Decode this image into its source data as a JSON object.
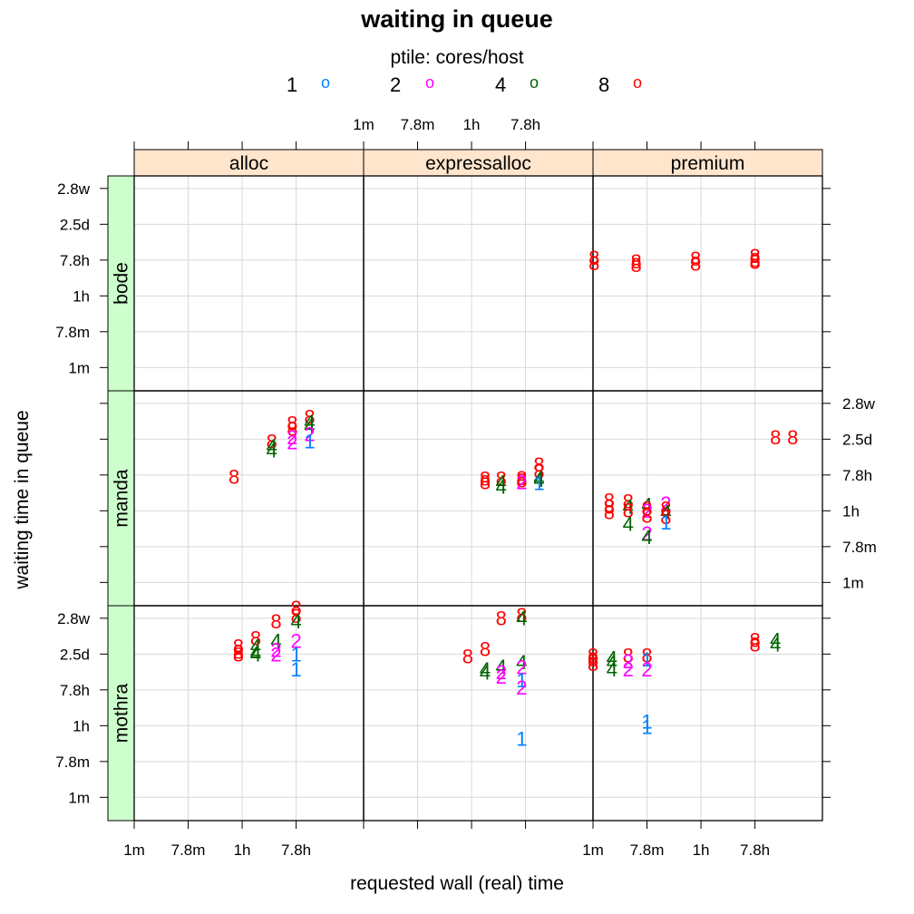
{
  "chart_data": {
    "type": "scatter",
    "title": "waiting in queue",
    "xlabel": "requested wall (real) time",
    "ylabel": "waiting time in queue",
    "legend": {
      "title": "ptile: cores/host",
      "placement": "top",
      "entries": [
        {
          "label": "1",
          "color": "#0080ff"
        },
        {
          "label": "2",
          "color": "#ff00ff"
        },
        {
          "label": "4",
          "color": "#006400"
        },
        {
          "label": "8",
          "color": "#ff0000"
        }
      ],
      "symbol": "o"
    },
    "x_ticks": [
      "1m",
      "7.8m",
      "1h",
      "7.8h"
    ],
    "y_ticks": [
      "1m",
      "7.8m",
      "1h",
      "7.8h",
      "2.5d",
      "2.8w"
    ],
    "x_unit_note": "log8 of seconds",
    "xlim": [
      1.0,
      5.25
    ],
    "ylim": [
      0.35,
      6.35
    ],
    "grid": true,
    "columns": [
      "alloc",
      "expressalloc",
      "premium"
    ],
    "rows": [
      "bode",
      "manda",
      "mothra"
    ],
    "panels": [
      {
        "column": "alloc",
        "row": "bode",
        "points": []
      },
      {
        "column": "alloc",
        "row": "manda",
        "points": [
          {
            "s": "8",
            "x": 3.55,
            "y": 4.92
          },
          {
            "s": "4",
            "x": 3.55,
            "y": 4.78
          },
          {
            "s": "4",
            "x": 3.55,
            "y": 4.67
          },
          {
            "s": "8",
            "x": 3.93,
            "y": 5.42
          },
          {
            "s": "8",
            "x": 3.93,
            "y": 5.27
          },
          {
            "s": "2",
            "x": 3.93,
            "y": 5.03
          },
          {
            "s": "2",
            "x": 3.93,
            "y": 4.9
          },
          {
            "s": "8",
            "x": 4.25,
            "y": 5.6
          },
          {
            "s": "4",
            "x": 4.25,
            "y": 5.47
          },
          {
            "s": "4",
            "x": 4.25,
            "y": 5.35
          },
          {
            "s": "2",
            "x": 4.25,
            "y": 5.12
          },
          {
            "s": "1",
            "x": 4.25,
            "y": 4.92
          },
          {
            "s": "8",
            "x": 2.85,
            "y": 3.93
          }
        ]
      },
      {
        "column": "alloc",
        "row": "mothra",
        "points": [
          {
            "s": "8",
            "x": 4.0,
            "y": 6.28
          },
          {
            "s": "8",
            "x": 4.0,
            "y": 6.05
          },
          {
            "s": "4",
            "x": 4.0,
            "y": 5.9
          },
          {
            "s": "2",
            "x": 4.0,
            "y": 5.35
          },
          {
            "s": "1",
            "x": 4.0,
            "y": 4.97
          },
          {
            "s": "1",
            "x": 4.0,
            "y": 4.55
          },
          {
            "s": "8",
            "x": 3.63,
            "y": 5.9
          },
          {
            "s": "4",
            "x": 3.63,
            "y": 5.35
          },
          {
            "s": "2",
            "x": 3.63,
            "y": 5.1
          },
          {
            "s": "2",
            "x": 3.63,
            "y": 4.97
          },
          {
            "s": "8",
            "x": 3.25,
            "y": 5.42
          },
          {
            "s": "4",
            "x": 3.25,
            "y": 5.2
          },
          {
            "s": "4",
            "x": 3.25,
            "y": 5.03
          },
          {
            "s": "4",
            "x": 3.25,
            "y": 4.97
          },
          {
            "s": "4",
            "x": 3.25,
            "y": 4.98
          },
          {
            "s": "8",
            "x": 2.93,
            "y": 5.2
          },
          {
            "s": "8",
            "x": 2.93,
            "y": 5.05
          },
          {
            "s": "8",
            "x": 2.93,
            "y": 4.97
          }
        ]
      },
      {
        "column": "expressalloc",
        "row": "bode",
        "points": []
      },
      {
        "column": "expressalloc",
        "row": "manda",
        "points": [
          {
            "s": "8",
            "x": 4.25,
            "y": 4.27
          },
          {
            "s": "8",
            "x": 4.25,
            "y": 4.08
          },
          {
            "s": "4",
            "x": 4.25,
            "y": 3.9
          },
          {
            "s": "4",
            "x": 4.25,
            "y": 3.85
          },
          {
            "s": "1",
            "x": 4.25,
            "y": 3.75
          },
          {
            "s": "8",
            "x": 3.93,
            "y": 3.9
          },
          {
            "s": "8",
            "x": 3.93,
            "y": 3.83
          },
          {
            "s": "2",
            "x": 3.93,
            "y": 3.78
          },
          {
            "s": "8",
            "x": 3.55,
            "y": 3.88
          },
          {
            "s": "4",
            "x": 3.55,
            "y": 3.78
          },
          {
            "s": "4",
            "x": 3.55,
            "y": 3.65
          },
          {
            "s": "8",
            "x": 3.25,
            "y": 3.88
          },
          {
            "s": "8",
            "x": 3.25,
            "y": 3.78
          }
        ]
      },
      {
        "column": "expressalloc",
        "row": "mothra",
        "points": [
          {
            "s": "8",
            "x": 3.93,
            "y": 6.07
          },
          {
            "s": "4",
            "x": 3.93,
            "y": 5.98
          },
          {
            "s": "8",
            "x": 3.55,
            "y": 5.98
          },
          {
            "s": "8",
            "x": 3.25,
            "y": 5.12
          },
          {
            "s": "8",
            "x": 2.93,
            "y": 4.92
          },
          {
            "s": "4",
            "x": 3.25,
            "y": 4.55
          },
          {
            "s": "4",
            "x": 3.25,
            "y": 4.47
          },
          {
            "s": "4",
            "x": 3.55,
            "y": 4.63
          },
          {
            "s": "2",
            "x": 3.55,
            "y": 4.48
          },
          {
            "s": "2",
            "x": 3.55,
            "y": 4.35
          },
          {
            "s": "4",
            "x": 3.93,
            "y": 4.75
          },
          {
            "s": "2",
            "x": 3.93,
            "y": 4.62
          },
          {
            "s": "1",
            "x": 3.93,
            "y": 4.25
          },
          {
            "s": "2",
            "x": 3.93,
            "y": 4.05
          },
          {
            "s": "1",
            "x": 3.93,
            "y": 2.62
          }
        ]
      },
      {
        "column": "premium",
        "row": "bode",
        "points": [
          {
            "s": "8",
            "x": 1.02,
            "y": 4.05
          },
          {
            "s": "8",
            "x": 1.02,
            "y": 3.9
          },
          {
            "s": "8",
            "x": 1.8,
            "y": 3.95
          },
          {
            "s": "8",
            "x": 1.8,
            "y": 3.85
          },
          {
            "s": "8",
            "x": 2.9,
            "y": 4.02
          },
          {
            "s": "8",
            "x": 2.9,
            "y": 3.88
          },
          {
            "s": "8",
            "x": 4.0,
            "y": 4.1
          },
          {
            "s": "8",
            "x": 4.0,
            "y": 3.98
          },
          {
            "s": "8",
            "x": 4.0,
            "y": 3.93
          }
        ]
      },
      {
        "column": "premium",
        "row": "manda",
        "points": [
          {
            "s": "8",
            "x": 4.38,
            "y": 5.03
          },
          {
            "s": "8",
            "x": 4.7,
            "y": 5.03
          },
          {
            "s": "8",
            "x": 1.3,
            "y": 3.28
          },
          {
            "s": "8",
            "x": 1.3,
            "y": 3.1
          },
          {
            "s": "8",
            "x": 1.3,
            "y": 2.95
          },
          {
            "s": "8",
            "x": 1.65,
            "y": 3.25
          },
          {
            "s": "4",
            "x": 1.65,
            "y": 3.1
          },
          {
            "s": "8",
            "x": 1.65,
            "y": 3.0
          },
          {
            "s": "4",
            "x": 1.65,
            "y": 2.62
          },
          {
            "s": "4",
            "x": 2.0,
            "y": 3.15
          },
          {
            "s": "8",
            "x": 2.0,
            "y": 3.05
          },
          {
            "s": "2",
            "x": 2.0,
            "y": 2.98
          },
          {
            "s": "8",
            "x": 2.0,
            "y": 2.85
          },
          {
            "s": "2",
            "x": 2.0,
            "y": 2.35
          },
          {
            "s": "4",
            "x": 2.0,
            "y": 2.25
          },
          {
            "s": "2",
            "x": 2.35,
            "y": 3.18
          },
          {
            "s": "8",
            "x": 2.35,
            "y": 3.05
          },
          {
            "s": "4",
            "x": 2.35,
            "y": 2.95
          },
          {
            "s": "8",
            "x": 2.35,
            "y": 2.8
          },
          {
            "s": "1",
            "x": 2.35,
            "y": 2.65
          }
        ]
      },
      {
        "column": "premium",
        "row": "mothra",
        "points": [
          {
            "s": "8",
            "x": 4.0,
            "y": 5.38
          },
          {
            "s": "8",
            "x": 4.0,
            "y": 5.25
          },
          {
            "s": "4",
            "x": 4.38,
            "y": 5.38
          },
          {
            "s": "4",
            "x": 4.38,
            "y": 5.25
          },
          {
            "s": "8",
            "x": 1.0,
            "y": 4.95
          },
          {
            "s": "8",
            "x": 1.0,
            "y": 4.83
          },
          {
            "s": "8",
            "x": 1.0,
            "y": 4.7
          },
          {
            "s": "4",
            "x": 1.35,
            "y": 4.87
          },
          {
            "s": "4",
            "x": 1.35,
            "y": 4.75
          },
          {
            "s": "4",
            "x": 1.35,
            "y": 4.55
          },
          {
            "s": "8",
            "x": 1.65,
            "y": 4.95
          },
          {
            "s": "2",
            "x": 1.65,
            "y": 4.78
          },
          {
            "s": "2",
            "x": 1.65,
            "y": 4.55
          },
          {
            "s": "8",
            "x": 2.0,
            "y": 4.95
          },
          {
            "s": "1",
            "x": 2.0,
            "y": 4.83
          },
          {
            "s": "2",
            "x": 2.0,
            "y": 4.55
          },
          {
            "s": "1",
            "x": 2.0,
            "y": 3.1
          },
          {
            "s": "1",
            "x": 2.0,
            "y": 2.95
          }
        ]
      }
    ]
  }
}
